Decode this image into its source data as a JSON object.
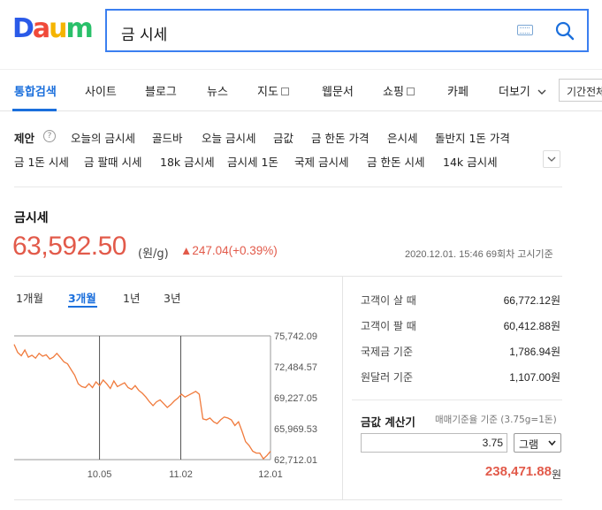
{
  "header": {
    "logo": "Daum",
    "logo_colors": [
      "#2a5ae8",
      "#f04a3a",
      "#f5b400",
      "#2ac06a",
      "#8a5fd8"
    ],
    "search_query": "금 시세"
  },
  "tabs": {
    "items": [
      {
        "label": "통합검색",
        "active": true
      },
      {
        "label": "사이트"
      },
      {
        "label": "블로그"
      },
      {
        "label": "뉴스"
      },
      {
        "label": "지도"
      },
      {
        "label": "웹문서"
      },
      {
        "label": "쇼핑"
      },
      {
        "label": "카페"
      },
      {
        "label": "더보기"
      }
    ],
    "period_label": "기간전체"
  },
  "suggestions": {
    "label": "제안",
    "row1": [
      "오늘의 금시세",
      "골드바",
      "오늘 금시세",
      "금값",
      "금 한돈 가격",
      "은시세",
      "돌반지 1돈 가격"
    ],
    "row2": [
      "금 1돈 시세",
      "금 팔때 시세",
      "18k 금시세",
      "금시세 1돈",
      "국제 금시세",
      "금 한돈 시세",
      "14k 금시세"
    ]
  },
  "quote": {
    "title": "금시세",
    "price": "63,592.50",
    "unit": "(원/g)",
    "change": "▲247.04(+0.39%)",
    "timestamp": "2020.12.01. 15:46 69회차 고시기준"
  },
  "period_tabs": [
    {
      "label": "1개월"
    },
    {
      "label": "3개월",
      "active": true
    },
    {
      "label": "1년"
    },
    {
      "label": "3년"
    }
  ],
  "chart_data": {
    "type": "line",
    "x_labels": [
      "10.05",
      "11.02",
      "12.01"
    ],
    "y_ticks": [
      "75,742.09",
      "72,484.57",
      "69,227.05",
      "65,969.53",
      "62,712.01"
    ],
    "ylim": [
      62712.01,
      75742.09
    ],
    "line_color": "#f07a3c",
    "values": [
      74850,
      74000,
      73650,
      74250,
      73500,
      73700,
      73400,
      73900,
      73600,
      73750,
      73300,
      73500,
      73900,
      73450,
      73000,
      72800,
      72200,
      71600,
      70700,
      70400,
      70300,
      70700,
      70300,
      70900,
      70500,
      71100,
      70700,
      70200,
      71000,
      70400,
      70600,
      70800,
      70300,
      70100,
      70500,
      70000,
      69700,
      69300,
      68800,
      68400,
      68800,
      69000,
      68600,
      68200,
      68500,
      68900,
      69200,
      69600,
      69300,
      69500,
      69700,
      69900,
      69600,
      67000,
      66900,
      67100,
      66700,
      66500,
      66900,
      67200,
      67100,
      66900,
      66300,
      66700,
      65700,
      64600,
      64200,
      63600,
      63400,
      63400,
      62800,
      63150,
      63590
    ]
  },
  "rates": [
    {
      "label": "고객이 살 때",
      "value": "66,772.12원"
    },
    {
      "label": "고객이 팔 때",
      "value": "60,412.88원"
    },
    {
      "label": "국제금 기준",
      "value": "1,786.94원"
    },
    {
      "label": "원달러 기준",
      "value": "1,107.00원"
    }
  ],
  "calculator": {
    "title": "금값 계산기",
    "note": "매매기준율 기준 (3.75g=1돈)",
    "input_value": "3.75",
    "unit_selected": "그램",
    "result": "238,471.88",
    "result_unit": "원"
  }
}
